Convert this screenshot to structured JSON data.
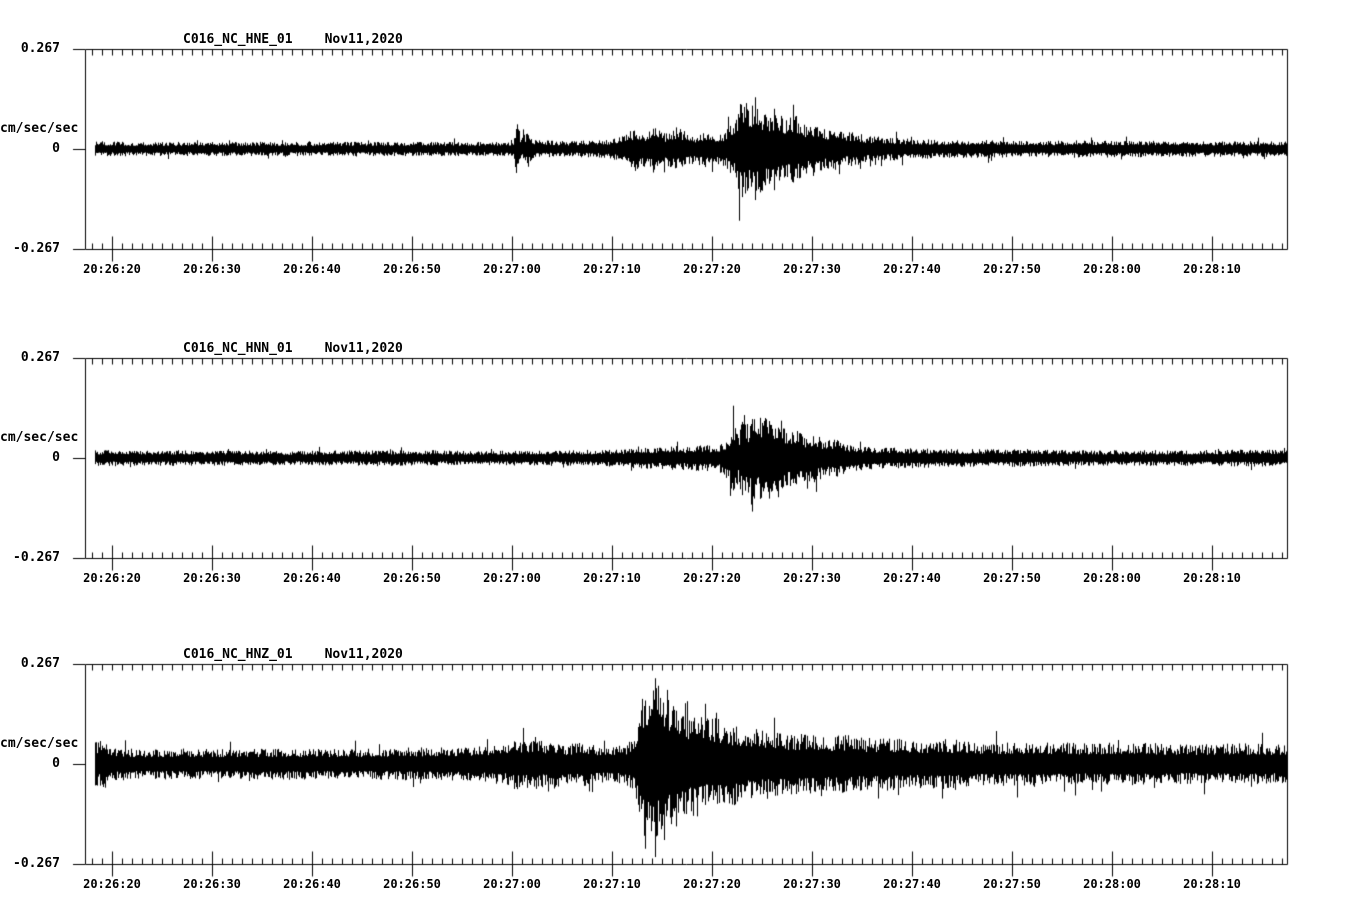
{
  "page": {
    "background": "#ffffff",
    "ink": "#000000"
  },
  "chart_data": [
    {
      "type": "line",
      "subtype": "seismogram",
      "title": "C016_NC_HNE_01",
      "date_label": "Nov11,2020",
      "ylabel": "cm/sec/sec",
      "yticks": [
        "0.267",
        "0",
        "-0.267"
      ],
      "ylim": [
        -0.267,
        0.267
      ],
      "xtick_labels": [
        "20:26:20",
        "20:26:30",
        "20:26:40",
        "20:26:50",
        "20:27:00",
        "20:27:10",
        "20:27:20",
        "20:27:30",
        "20:27:40",
        "20:27:50",
        "20:28:00",
        "20:28:10"
      ],
      "xtick_interval_sec": 10,
      "minor_tick_sec": 1,
      "grid": false,
      "envelope_units": {
        "t": "seconds from left edge of axis",
        "a": "cm/sec/sec peak amplitude"
      },
      "envelope": [
        [
          1,
          0.021
        ],
        [
          5,
          0.019
        ],
        [
          20,
          0.019
        ],
        [
          40,
          0.019
        ],
        [
          42.8,
          0.021
        ],
        [
          43.2,
          0.08
        ],
        [
          43.6,
          0.027
        ],
        [
          44.3,
          0.053
        ],
        [
          44.8,
          0.024
        ],
        [
          48,
          0.021
        ],
        [
          52,
          0.024
        ],
        [
          54,
          0.037
        ],
        [
          55,
          0.059
        ],
        [
          56,
          0.048
        ],
        [
          57,
          0.067
        ],
        [
          58,
          0.043
        ],
        [
          59,
          0.059
        ],
        [
          60,
          0.048
        ],
        [
          61,
          0.037
        ],
        [
          62,
          0.053
        ],
        [
          63,
          0.04
        ],
        [
          64,
          0.048
        ],
        [
          65,
          0.08
        ],
        [
          65.6,
          0.147
        ],
        [
          66.3,
          0.12
        ],
        [
          67,
          0.139
        ],
        [
          68,
          0.101
        ],
        [
          69,
          0.112
        ],
        [
          70,
          0.08
        ],
        [
          71,
          0.093
        ],
        [
          72,
          0.067
        ],
        [
          73,
          0.075
        ],
        [
          74,
          0.053
        ],
        [
          75,
          0.059
        ],
        [
          76,
          0.043
        ],
        [
          77,
          0.048
        ],
        [
          78,
          0.035
        ],
        [
          80,
          0.032
        ],
        [
          83,
          0.027
        ],
        [
          86,
          0.024
        ],
        [
          90,
          0.024
        ],
        [
          95,
          0.021
        ],
        [
          100,
          0.024
        ],
        [
          110,
          0.021
        ],
        [
          120,
          0.021
        ]
      ]
    },
    {
      "type": "line",
      "subtype": "seismogram",
      "title": "C016_NC_HNN_01",
      "date_label": "Nov11,2020",
      "ylabel": "cm/sec/sec",
      "yticks": [
        "0.267",
        "0",
        "-0.267"
      ],
      "ylim": [
        -0.267,
        0.267
      ],
      "xtick_labels": [
        "20:26:20",
        "20:26:30",
        "20:26:40",
        "20:26:50",
        "20:27:00",
        "20:27:10",
        "20:27:20",
        "20:27:30",
        "20:27:40",
        "20:27:50",
        "20:28:00",
        "20:28:10"
      ],
      "xtick_interval_sec": 10,
      "minor_tick_sec": 1,
      "grid": false,
      "envelope_units": {
        "t": "seconds from left edge of axis",
        "a": "cm/sec/sec peak amplitude"
      },
      "envelope": [
        [
          1,
          0.021
        ],
        [
          10,
          0.021
        ],
        [
          20,
          0.019
        ],
        [
          30,
          0.021
        ],
        [
          40,
          0.019
        ],
        [
          45,
          0.021
        ],
        [
          50,
          0.021
        ],
        [
          54,
          0.024
        ],
        [
          55.5,
          0.032
        ],
        [
          57,
          0.027
        ],
        [
          58.5,
          0.035
        ],
        [
          60,
          0.029
        ],
        [
          61.5,
          0.037
        ],
        [
          63,
          0.032
        ],
        [
          64,
          0.048
        ],
        [
          64.8,
          0.093
        ],
        [
          65.3,
          0.067
        ],
        [
          65.8,
          0.12
        ],
        [
          66.3,
          0.093
        ],
        [
          66.8,
          0.16
        ],
        [
          67.3,
          0.107
        ],
        [
          68,
          0.133
        ],
        [
          68.7,
          0.093
        ],
        [
          69.4,
          0.112
        ],
        [
          70,
          0.075
        ],
        [
          71,
          0.085
        ],
        [
          72,
          0.059
        ],
        [
          73,
          0.067
        ],
        [
          74,
          0.048
        ],
        [
          75,
          0.053
        ],
        [
          76,
          0.04
        ],
        [
          78,
          0.032
        ],
        [
          80,
          0.029
        ],
        [
          83,
          0.027
        ],
        [
          87,
          0.024
        ],
        [
          92,
          0.024
        ],
        [
          100,
          0.021
        ],
        [
          110,
          0.021
        ],
        [
          120,
          0.024
        ]
      ]
    },
    {
      "type": "line",
      "subtype": "seismogram",
      "title": "C016_NC_HNZ_01",
      "date_label": "Nov11,2020",
      "ylabel": "cm/sec/sec",
      "yticks": [
        "0.267",
        "0",
        "-0.267"
      ],
      "ylim": [
        -0.267,
        0.267
      ],
      "xtick_labels": [
        "20:26:20",
        "20:26:30",
        "20:26:40",
        "20:26:50",
        "20:27:00",
        "20:27:10",
        "20:27:20",
        "20:27:30",
        "20:27:40",
        "20:27:50",
        "20:28:00",
        "20:28:10"
      ],
      "xtick_interval_sec": 10,
      "minor_tick_sec": 1,
      "grid": false,
      "envelope_units": {
        "t": "seconds from left edge of axis",
        "a": "cm/sec/sec peak amplitude"
      },
      "envelope": [
        [
          1,
          0.059
        ],
        [
          2,
          0.064
        ],
        [
          3,
          0.045
        ],
        [
          6,
          0.04
        ],
        [
          10,
          0.043
        ],
        [
          15,
          0.04
        ],
        [
          20,
          0.043
        ],
        [
          25,
          0.04
        ],
        [
          30,
          0.043
        ],
        [
          35,
          0.045
        ],
        [
          40,
          0.048
        ],
        [
          42,
          0.053
        ],
        [
          43,
          0.069
        ],
        [
          44,
          0.064
        ],
        [
          45,
          0.075
        ],
        [
          46,
          0.059
        ],
        [
          47,
          0.067
        ],
        [
          48,
          0.053
        ],
        [
          50,
          0.059
        ],
        [
          52,
          0.048
        ],
        [
          54,
          0.053
        ],
        [
          55,
          0.08
        ],
        [
          55.5,
          0.16
        ],
        [
          56,
          0.24
        ],
        [
          56.5,
          0.2
        ],
        [
          57,
          0.254
        ],
        [
          57.5,
          0.187
        ],
        [
          58,
          0.227
        ],
        [
          58.5,
          0.16
        ],
        [
          59,
          0.187
        ],
        [
          60,
          0.133
        ],
        [
          61,
          0.147
        ],
        [
          62,
          0.12
        ],
        [
          63,
          0.128
        ],
        [
          64,
          0.107
        ],
        [
          65,
          0.112
        ],
        [
          66,
          0.096
        ],
        [
          67,
          0.101
        ],
        [
          68,
          0.088
        ],
        [
          69,
          0.093
        ],
        [
          70,
          0.08
        ],
        [
          72,
          0.085
        ],
        [
          74,
          0.075
        ],
        [
          76,
          0.08
        ],
        [
          78,
          0.069
        ],
        [
          80,
          0.072
        ],
        [
          83,
          0.064
        ],
        [
          86,
          0.067
        ],
        [
          90,
          0.059
        ],
        [
          95,
          0.061
        ],
        [
          100,
          0.056
        ],
        [
          105,
          0.059
        ],
        [
          110,
          0.053
        ],
        [
          115,
          0.056
        ],
        [
          120,
          0.053
        ]
      ]
    }
  ]
}
